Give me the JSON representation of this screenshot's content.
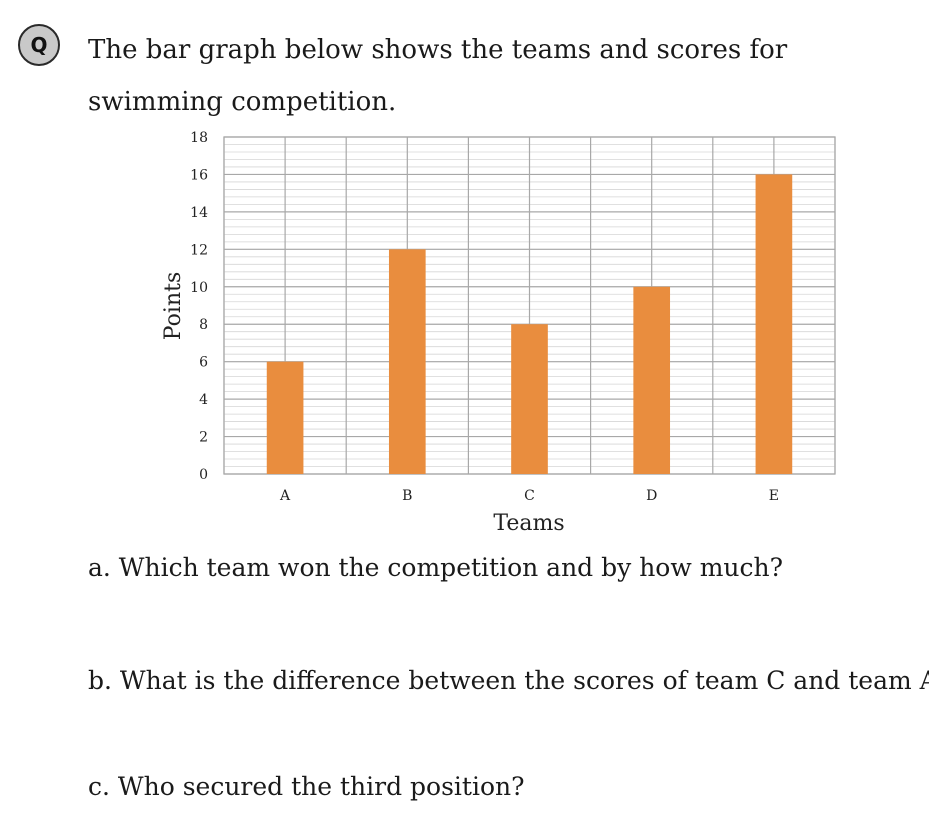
{
  "badge": {
    "label": "Q"
  },
  "question": {
    "text": "The bar graph below shows the teams and scores for swimming competition."
  },
  "chart_data": {
    "type": "bar",
    "title": "",
    "categories": [
      "A",
      "B",
      "C",
      "D",
      "E"
    ],
    "values": [
      6,
      12,
      8,
      10,
      16
    ],
    "xlabel": "Teams",
    "ylabel": "Points",
    "ylim": [
      0,
      18
    ],
    "yticks": [
      0,
      2,
      4,
      6,
      8,
      10,
      12,
      14,
      16,
      18
    ],
    "grid": true,
    "bar_color": "#e98d3e"
  },
  "sub_questions": {
    "a": "a. Which team won the competition and by how much?",
    "b": "b. What is the difference between the scores of team C and team A?",
    "c": "c. Who secured the third position?"
  }
}
